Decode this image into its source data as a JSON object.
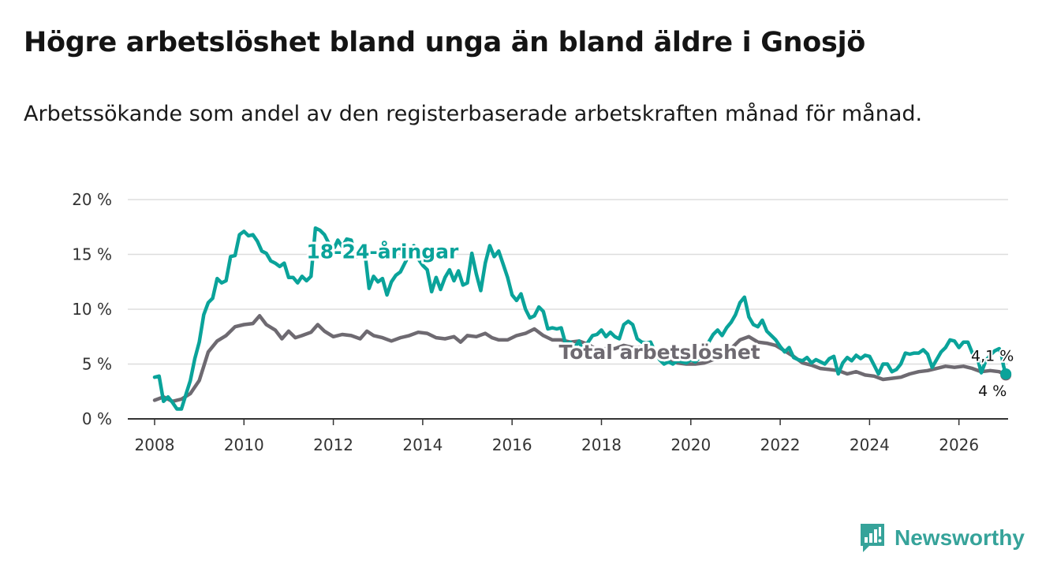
{
  "title": "Högre arbetslöshet bland unga än bland äldre i Gnosjö",
  "subtitle": "Arbetssökande som andel av den registerbaserade arbetskraften månad för månad.",
  "brand": {
    "name": "Newsworthy",
    "icon": "newsworthy-logo-icon",
    "color": "#36a39a"
  },
  "colors": {
    "youth": "#0aa39a",
    "total": "#6e6a71",
    "grid": "#dddddd",
    "axis": "#333333"
  },
  "chart_data": {
    "type": "line",
    "title": "Högre arbetslöshet bland unga än bland äldre i Gnosjö",
    "xlabel": "",
    "ylabel": "",
    "xlim": [
      2007.4,
      2027.1
    ],
    "ylim": [
      0,
      20
    ],
    "x_ticks": [
      2008,
      2010,
      2012,
      2014,
      2016,
      2018,
      2020,
      2022,
      2024,
      2026
    ],
    "x_tick_labels": [
      "2008",
      "2010",
      "2012",
      "2014",
      "2016",
      "2018",
      "2020",
      "2022",
      "2024",
      "2026"
    ],
    "y_ticks": [
      0,
      5,
      10,
      15,
      20
    ],
    "y_tick_labels": [
      "0 %",
      "5 %",
      "10 %",
      "15 %",
      "20 %"
    ],
    "grid": true,
    "series": [
      {
        "name": "18-24-åringar",
        "label": "18-24-åringar",
        "end_label": "4,1 %",
        "points": [
          [
            2008.0,
            3.8
          ],
          [
            2008.1,
            3.9
          ],
          [
            2008.2,
            1.6
          ],
          [
            2008.3,
            2.0
          ],
          [
            2008.4,
            1.5
          ],
          [
            2008.5,
            0.9
          ],
          [
            2008.6,
            0.9
          ],
          [
            2008.7,
            2.2
          ],
          [
            2008.8,
            3.5
          ],
          [
            2008.9,
            5.5
          ],
          [
            2009.0,
            7.0
          ],
          [
            2009.1,
            9.5
          ],
          [
            2009.2,
            10.6
          ],
          [
            2009.3,
            11.0
          ],
          [
            2009.4,
            12.8
          ],
          [
            2009.5,
            12.4
          ],
          [
            2009.6,
            12.6
          ],
          [
            2009.7,
            14.8
          ],
          [
            2009.8,
            14.9
          ],
          [
            2009.9,
            16.8
          ],
          [
            2010.0,
            17.1
          ],
          [
            2010.1,
            16.7
          ],
          [
            2010.2,
            16.8
          ],
          [
            2010.3,
            16.2
          ],
          [
            2010.4,
            15.3
          ],
          [
            2010.5,
            15.1
          ],
          [
            2010.6,
            14.4
          ],
          [
            2010.7,
            14.2
          ],
          [
            2010.8,
            13.9
          ],
          [
            2010.9,
            14.2
          ],
          [
            2011.0,
            12.9
          ],
          [
            2011.1,
            12.9
          ],
          [
            2011.2,
            12.4
          ],
          [
            2011.3,
            13.0
          ],
          [
            2011.4,
            12.6
          ],
          [
            2011.5,
            13.0
          ],
          [
            2011.6,
            17.4
          ],
          [
            2011.7,
            17.2
          ],
          [
            2011.8,
            16.8
          ],
          [
            2011.9,
            16.0
          ],
          [
            2012.0,
            15.4
          ],
          [
            2012.1,
            16.3
          ],
          [
            2012.2,
            15.7
          ],
          [
            2012.3,
            16.4
          ],
          [
            2012.4,
            16.3
          ],
          [
            2012.5,
            14.8
          ],
          [
            2012.6,
            14.9
          ],
          [
            2012.7,
            15.4
          ],
          [
            2012.8,
            11.9
          ],
          [
            2012.9,
            13.0
          ],
          [
            2013.0,
            12.5
          ],
          [
            2013.1,
            12.8
          ],
          [
            2013.2,
            11.3
          ],
          [
            2013.3,
            12.5
          ],
          [
            2013.4,
            13.1
          ],
          [
            2013.5,
            13.4
          ],
          [
            2013.6,
            14.2
          ],
          [
            2013.7,
            15.0
          ],
          [
            2013.8,
            15.8
          ],
          [
            2013.9,
            14.6
          ],
          [
            2014.0,
            14.0
          ],
          [
            2014.1,
            13.6
          ],
          [
            2014.2,
            11.6
          ],
          [
            2014.3,
            12.9
          ],
          [
            2014.4,
            11.8
          ],
          [
            2014.5,
            12.9
          ],
          [
            2014.6,
            13.6
          ],
          [
            2014.7,
            12.6
          ],
          [
            2014.8,
            13.5
          ],
          [
            2014.9,
            12.2
          ],
          [
            2015.0,
            12.4
          ],
          [
            2015.1,
            15.1
          ],
          [
            2015.2,
            13.2
          ],
          [
            2015.3,
            11.7
          ],
          [
            2015.4,
            14.2
          ],
          [
            2015.5,
            15.8
          ],
          [
            2015.6,
            14.8
          ],
          [
            2015.7,
            15.3
          ],
          [
            2015.8,
            14.1
          ],
          [
            2015.9,
            12.9
          ],
          [
            2016.0,
            11.3
          ],
          [
            2016.1,
            10.8
          ],
          [
            2016.2,
            11.4
          ],
          [
            2016.3,
            10.0
          ],
          [
            2016.4,
            9.2
          ],
          [
            2016.5,
            9.4
          ],
          [
            2016.6,
            10.2
          ],
          [
            2016.7,
            9.8
          ],
          [
            2016.8,
            8.2
          ],
          [
            2016.9,
            8.3
          ],
          [
            2017.0,
            8.2
          ],
          [
            2017.1,
            8.3
          ],
          [
            2017.2,
            6.8
          ],
          [
            2017.3,
            7.0
          ],
          [
            2017.4,
            6.5
          ],
          [
            2017.5,
            7.1
          ],
          [
            2017.6,
            5.9
          ],
          [
            2017.7,
            7.0
          ],
          [
            2017.8,
            7.6
          ],
          [
            2017.9,
            7.7
          ],
          [
            2018.0,
            8.1
          ],
          [
            2018.1,
            7.5
          ],
          [
            2018.2,
            7.9
          ],
          [
            2018.3,
            7.5
          ],
          [
            2018.4,
            7.3
          ],
          [
            2018.5,
            8.6
          ],
          [
            2018.6,
            8.9
          ],
          [
            2018.7,
            8.6
          ],
          [
            2018.8,
            7.3
          ],
          [
            2018.9,
            7.0
          ],
          [
            2019.0,
            6.9
          ],
          [
            2019.1,
            7.0
          ],
          [
            2019.2,
            6.1
          ],
          [
            2019.3,
            5.4
          ],
          [
            2019.4,
            5.0
          ],
          [
            2019.5,
            5.2
          ],
          [
            2019.6,
            5.0
          ],
          [
            2019.7,
            5.3
          ],
          [
            2019.8,
            5.2
          ],
          [
            2019.9,
            5.1
          ],
          [
            2020.0,
            5.4
          ],
          [
            2020.1,
            5.2
          ],
          [
            2020.2,
            5.6
          ],
          [
            2020.3,
            6.0
          ],
          [
            2020.4,
            7.0
          ],
          [
            2020.5,
            7.7
          ],
          [
            2020.6,
            8.1
          ],
          [
            2020.7,
            7.6
          ],
          [
            2020.8,
            8.3
          ],
          [
            2020.9,
            8.8
          ],
          [
            2021.0,
            9.5
          ],
          [
            2021.1,
            10.6
          ],
          [
            2021.2,
            11.1
          ],
          [
            2021.3,
            9.3
          ],
          [
            2021.4,
            8.6
          ],
          [
            2021.5,
            8.4
          ],
          [
            2021.6,
            9.0
          ],
          [
            2021.7,
            8.0
          ],
          [
            2021.8,
            7.6
          ],
          [
            2021.9,
            7.2
          ],
          [
            2022.0,
            6.6
          ],
          [
            2022.1,
            6.1
          ],
          [
            2022.2,
            6.5
          ],
          [
            2022.3,
            5.6
          ],
          [
            2022.4,
            5.4
          ],
          [
            2022.5,
            5.3
          ],
          [
            2022.6,
            5.6
          ],
          [
            2022.7,
            5.1
          ],
          [
            2022.8,
            5.4
          ],
          [
            2022.9,
            5.2
          ],
          [
            2023.0,
            5.0
          ],
          [
            2023.1,
            5.5
          ],
          [
            2023.2,
            5.7
          ],
          [
            2023.3,
            4.1
          ],
          [
            2023.4,
            5.1
          ],
          [
            2023.5,
            5.6
          ],
          [
            2023.6,
            5.3
          ],
          [
            2023.7,
            5.8
          ],
          [
            2023.8,
            5.5
          ],
          [
            2023.9,
            5.8
          ],
          [
            2024.0,
            5.7
          ],
          [
            2024.1,
            4.9
          ],
          [
            2024.2,
            4.1
          ],
          [
            2024.3,
            5.0
          ],
          [
            2024.4,
            5.0
          ],
          [
            2024.5,
            4.3
          ],
          [
            2024.6,
            4.5
          ],
          [
            2024.7,
            5.0
          ],
          [
            2024.8,
            6.0
          ],
          [
            2024.9,
            5.9
          ],
          [
            2025.0,
            6.0
          ],
          [
            2025.1,
            6.0
          ],
          [
            2025.2,
            6.3
          ],
          [
            2025.3,
            5.9
          ],
          [
            2025.4,
            4.7
          ],
          [
            2025.5,
            5.4
          ],
          [
            2025.6,
            6.1
          ],
          [
            2025.7,
            6.5
          ],
          [
            2025.8,
            7.2
          ],
          [
            2025.9,
            7.1
          ],
          [
            2026.0,
            6.5
          ],
          [
            2026.1,
            7.0
          ],
          [
            2026.2,
            7.0
          ],
          [
            2026.3,
            6.0
          ],
          [
            2026.4,
            5.8
          ],
          [
            2026.5,
            4.2
          ],
          [
            2026.6,
            5.3
          ],
          [
            2026.7,
            5.8
          ],
          [
            2026.8,
            6.2
          ],
          [
            2026.9,
            6.4
          ],
          [
            2026.95,
            5.9
          ],
          [
            2027.0,
            4.8
          ],
          [
            2027.05,
            4.1
          ]
        ]
      },
      {
        "name": "Total arbetslöshet",
        "label": "Total arbetslöshet",
        "end_label": "4 %",
        "points": [
          [
            2008.0,
            1.7
          ],
          [
            2008.2,
            2.0
          ],
          [
            2008.4,
            1.6
          ],
          [
            2008.6,
            1.8
          ],
          [
            2008.8,
            2.3
          ],
          [
            2009.0,
            3.5
          ],
          [
            2009.2,
            6.1
          ],
          [
            2009.4,
            7.1
          ],
          [
            2009.6,
            7.6
          ],
          [
            2009.8,
            8.4
          ],
          [
            2010.0,
            8.6
          ],
          [
            2010.2,
            8.7
          ],
          [
            2010.35,
            9.4
          ],
          [
            2010.5,
            8.6
          ],
          [
            2010.7,
            8.1
          ],
          [
            2010.85,
            7.3
          ],
          [
            2011.0,
            8.0
          ],
          [
            2011.15,
            7.4
          ],
          [
            2011.3,
            7.6
          ],
          [
            2011.5,
            7.9
          ],
          [
            2011.65,
            8.6
          ],
          [
            2011.8,
            8.0
          ],
          [
            2012.0,
            7.5
          ],
          [
            2012.2,
            7.7
          ],
          [
            2012.4,
            7.6
          ],
          [
            2012.6,
            7.3
          ],
          [
            2012.75,
            8.0
          ],
          [
            2012.9,
            7.6
          ],
          [
            2013.1,
            7.4
          ],
          [
            2013.3,
            7.1
          ],
          [
            2013.5,
            7.4
          ],
          [
            2013.7,
            7.6
          ],
          [
            2013.9,
            7.9
          ],
          [
            2014.1,
            7.8
          ],
          [
            2014.3,
            7.4
          ],
          [
            2014.5,
            7.3
          ],
          [
            2014.7,
            7.5
          ],
          [
            2014.85,
            7.0
          ],
          [
            2015.0,
            7.6
          ],
          [
            2015.2,
            7.5
          ],
          [
            2015.4,
            7.8
          ],
          [
            2015.55,
            7.4
          ],
          [
            2015.7,
            7.2
          ],
          [
            2015.9,
            7.2
          ],
          [
            2016.1,
            7.6
          ],
          [
            2016.3,
            7.8
          ],
          [
            2016.5,
            8.2
          ],
          [
            2016.7,
            7.6
          ],
          [
            2016.9,
            7.2
          ],
          [
            2017.1,
            7.2
          ],
          [
            2017.3,
            7.0
          ],
          [
            2017.5,
            7.1
          ],
          [
            2017.7,
            6.8
          ],
          [
            2017.9,
            6.3
          ],
          [
            2018.1,
            6.4
          ],
          [
            2018.3,
            6.4
          ],
          [
            2018.5,
            6.7
          ],
          [
            2018.7,
            6.5
          ],
          [
            2018.9,
            6.5
          ],
          [
            2019.1,
            6.2
          ],
          [
            2019.3,
            6.0
          ],
          [
            2019.5,
            5.4
          ],
          [
            2019.7,
            5.1
          ],
          [
            2019.9,
            5.0
          ],
          [
            2020.1,
            5.0
          ],
          [
            2020.3,
            5.1
          ],
          [
            2020.5,
            5.4
          ],
          [
            2020.7,
            5.7
          ],
          [
            2020.9,
            6.4
          ],
          [
            2021.1,
            7.2
          ],
          [
            2021.3,
            7.5
          ],
          [
            2021.5,
            7.0
          ],
          [
            2021.7,
            6.9
          ],
          [
            2021.9,
            6.7
          ],
          [
            2022.1,
            6.2
          ],
          [
            2022.3,
            5.7
          ],
          [
            2022.5,
            5.1
          ],
          [
            2022.7,
            4.9
          ],
          [
            2022.9,
            4.6
          ],
          [
            2023.1,
            4.5
          ],
          [
            2023.3,
            4.4
          ],
          [
            2023.5,
            4.1
          ],
          [
            2023.7,
            4.3
          ],
          [
            2023.9,
            4.0
          ],
          [
            2024.1,
            3.9
          ],
          [
            2024.3,
            3.6
          ],
          [
            2024.5,
            3.7
          ],
          [
            2024.7,
            3.8
          ],
          [
            2024.9,
            4.1
          ],
          [
            2025.1,
            4.3
          ],
          [
            2025.3,
            4.4
          ],
          [
            2025.5,
            4.6
          ],
          [
            2025.7,
            4.8
          ],
          [
            2025.9,
            4.7
          ],
          [
            2026.1,
            4.8
          ],
          [
            2026.3,
            4.6
          ],
          [
            2026.5,
            4.3
          ],
          [
            2026.7,
            4.4
          ],
          [
            2026.9,
            4.3
          ],
          [
            2027.05,
            4.0
          ]
        ]
      }
    ]
  }
}
